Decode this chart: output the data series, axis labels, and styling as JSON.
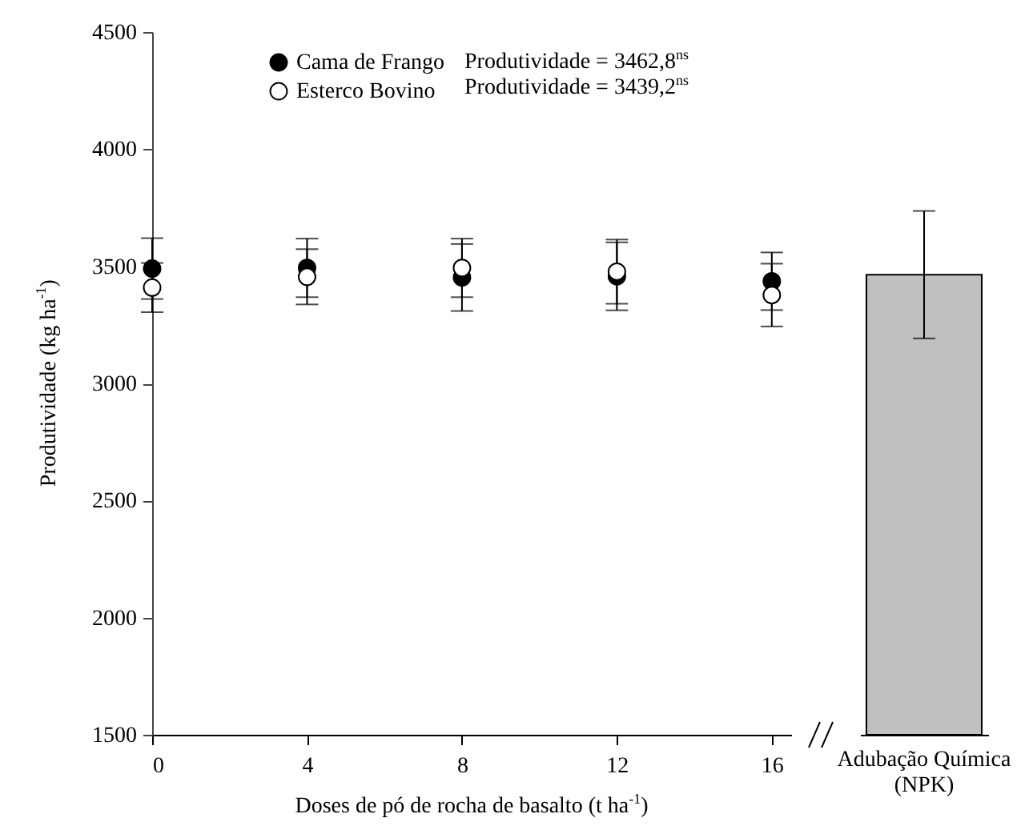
{
  "chart_data": [
    {
      "type": "scatter",
      "xlabel": "Doses de pó de rocha de basalto (t ha$^{-1}$)",
      "ylabel": "Produtividade (kg ha$^{-1}$)",
      "x": [
        0,
        4,
        8,
        12,
        16
      ],
      "series": [
        {
          "name": "Cama de Frango",
          "color": "#000000",
          "values": [
            3490,
            3493,
            3452,
            3457,
            3436
          ],
          "errors": [
            130,
            125,
            143,
            145,
            123
          ]
        },
        {
          "name": "Esterco Bovino",
          "color": "#ffffff",
          "values": [
            3409,
            3455,
            3493,
            3477,
            3377
          ],
          "errors": [
            105,
            118,
            125,
            137,
            134
          ]
        }
      ],
      "xlim": [
        0,
        16.5
      ],
      "xticks": [
        0,
        4,
        8,
        12,
        16
      ],
      "ylim": [
        1500,
        4500
      ],
      "yticks": [
        1500,
        2000,
        2500,
        3000,
        3500,
        4000,
        4500
      ],
      "legend": "top",
      "marker": "circle",
      "annotations": [
        "Produtividade = 3462,8$^{ns}$",
        "Produtividade = 3439,2$^{ns}$"
      ]
    },
    {
      "type": "bar",
      "categories": [
        "Adubação Química (NPK)"
      ],
      "values": [
        3464
      ],
      "errors": [
        272
      ],
      "colors": [
        "#c0c0c0"
      ],
      "ylim": [
        1500,
        4500
      ],
      "tick_labels": "x"
    }
  ]
}
